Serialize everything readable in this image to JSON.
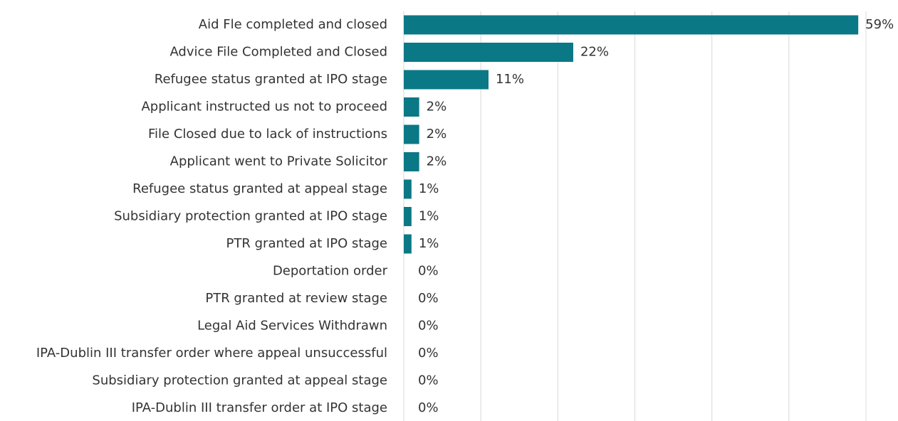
{
  "chart_data": {
    "type": "hbar",
    "categories": [
      "Aid Fle completed and closed",
      "Advice File Completed and Closed",
      "Refugee status granted at IPO stage",
      "Applicant instructed us not to proceed",
      "File Closed due to lack of instructions",
      "Applicant went to Private Solicitor",
      "Refugee status granted at appeal stage",
      "Subsidiary protection granted at IPO stage",
      "PTR granted at IPO stage",
      "Deportation order",
      "PTR granted at review stage",
      "Legal Aid Services Withdrawn",
      "IPA-Dublin III transfer order where appeal unsuccessful",
      "Subsidiary protection granted at appeal stage",
      "IPA-Dublin III transfer order at IPO stage"
    ],
    "values": [
      59,
      22,
      11,
      2,
      2,
      2,
      1,
      1,
      1,
      0,
      0,
      0,
      0,
      0,
      0
    ],
    "value_labels": [
      "59%",
      "22%",
      "11%",
      "2%",
      "2%",
      "2%",
      "1%",
      "1%",
      "1%",
      "0%",
      "0%",
      "0%",
      "0%",
      "0%",
      "0%"
    ],
    "color": "#0b7886",
    "xlim": [
      0,
      60
    ],
    "xticks": [
      0,
      10,
      20,
      30,
      40,
      50,
      60
    ],
    "grid": true
  }
}
